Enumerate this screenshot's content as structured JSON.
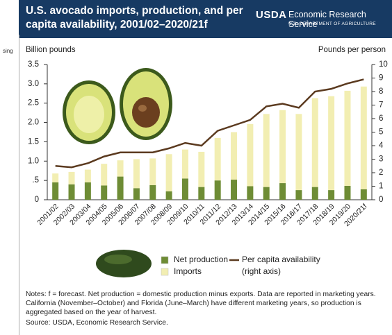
{
  "chart_data": {
    "type": "stacked-bar-line",
    "title": "U.S. avocado imports, production, and per capita availability, 2001/02–2020/21f",
    "logo": {
      "name": "USDA",
      "agency": "Economic Research Service",
      "department": "U.S. DEPARTMENT OF AGRICULTURE"
    },
    "stray_text": "sing",
    "y_label": "Billion pounds",
    "y2_label": "Pounds per person",
    "categories": [
      "2001/02",
      "2002/03",
      "2003/04",
      "2004/05",
      "2005/06",
      "2006/07",
      "2007/08",
      "2008/09",
      "2009/10",
      "2010/11",
      "2011/12",
      "2012/13",
      "2013/14",
      "2014/15",
      "2015/16",
      "2016/17",
      "2017/18",
      "2018/19",
      "2019/20",
      "2020/21f"
    ],
    "series": [
      {
        "name": "Net production",
        "color": "#6e8c35",
        "values": [
          0.45,
          0.4,
          0.45,
          0.37,
          0.6,
          0.3,
          0.38,
          0.22,
          0.55,
          0.33,
          0.5,
          0.52,
          0.35,
          0.33,
          0.43,
          0.25,
          0.33,
          0.25,
          0.36,
          0.27
        ]
      },
      {
        "name": "Imports",
        "color": "#f2eeb2",
        "values": [
          0.23,
          0.32,
          0.33,
          0.56,
          0.42,
          0.75,
          0.69,
          0.96,
          0.75,
          0.91,
          1.1,
          1.23,
          1.61,
          1.89,
          1.89,
          1.97,
          2.3,
          2.43,
          2.46,
          2.66
        ]
      },
      {
        "name": "Per capita availability",
        "color": "#5b3a1f",
        "axis": "y2",
        "values": [
          2.5,
          2.4,
          2.7,
          3.2,
          3.5,
          3.5,
          3.5,
          3.8,
          4.2,
          4.0,
          5.1,
          5.5,
          5.9,
          6.9,
          7.1,
          6.8,
          8.0,
          8.2,
          8.6,
          8.9
        ]
      }
    ],
    "legend_note": "(right axis)",
    "ylim": [
      0,
      3.5
    ],
    "yticks": [
      0,
      {
        "value": 0.5,
        "label": ".5"
      },
      {
        "value": 1,
        "label": "1.0"
      },
      1.5,
      {
        "value": 2,
        "label": "2.0"
      },
      2.5,
      {
        "value": 3,
        "label": "3.0"
      },
      3.5
    ],
    "y2lim": [
      0,
      10
    ],
    "y2ticks": [
      0,
      1,
      2,
      3,
      4,
      5,
      6,
      7,
      8,
      9,
      10
    ],
    "notes": "Notes: f = forecast. Net production = domestic production minus exports. Data are reported in marketing years. California (November–October) and Florida (June–March) have different marketing years, so production is aggregated based on the year of harvest.",
    "source": "Source: USDA, Economic Research Service."
  }
}
